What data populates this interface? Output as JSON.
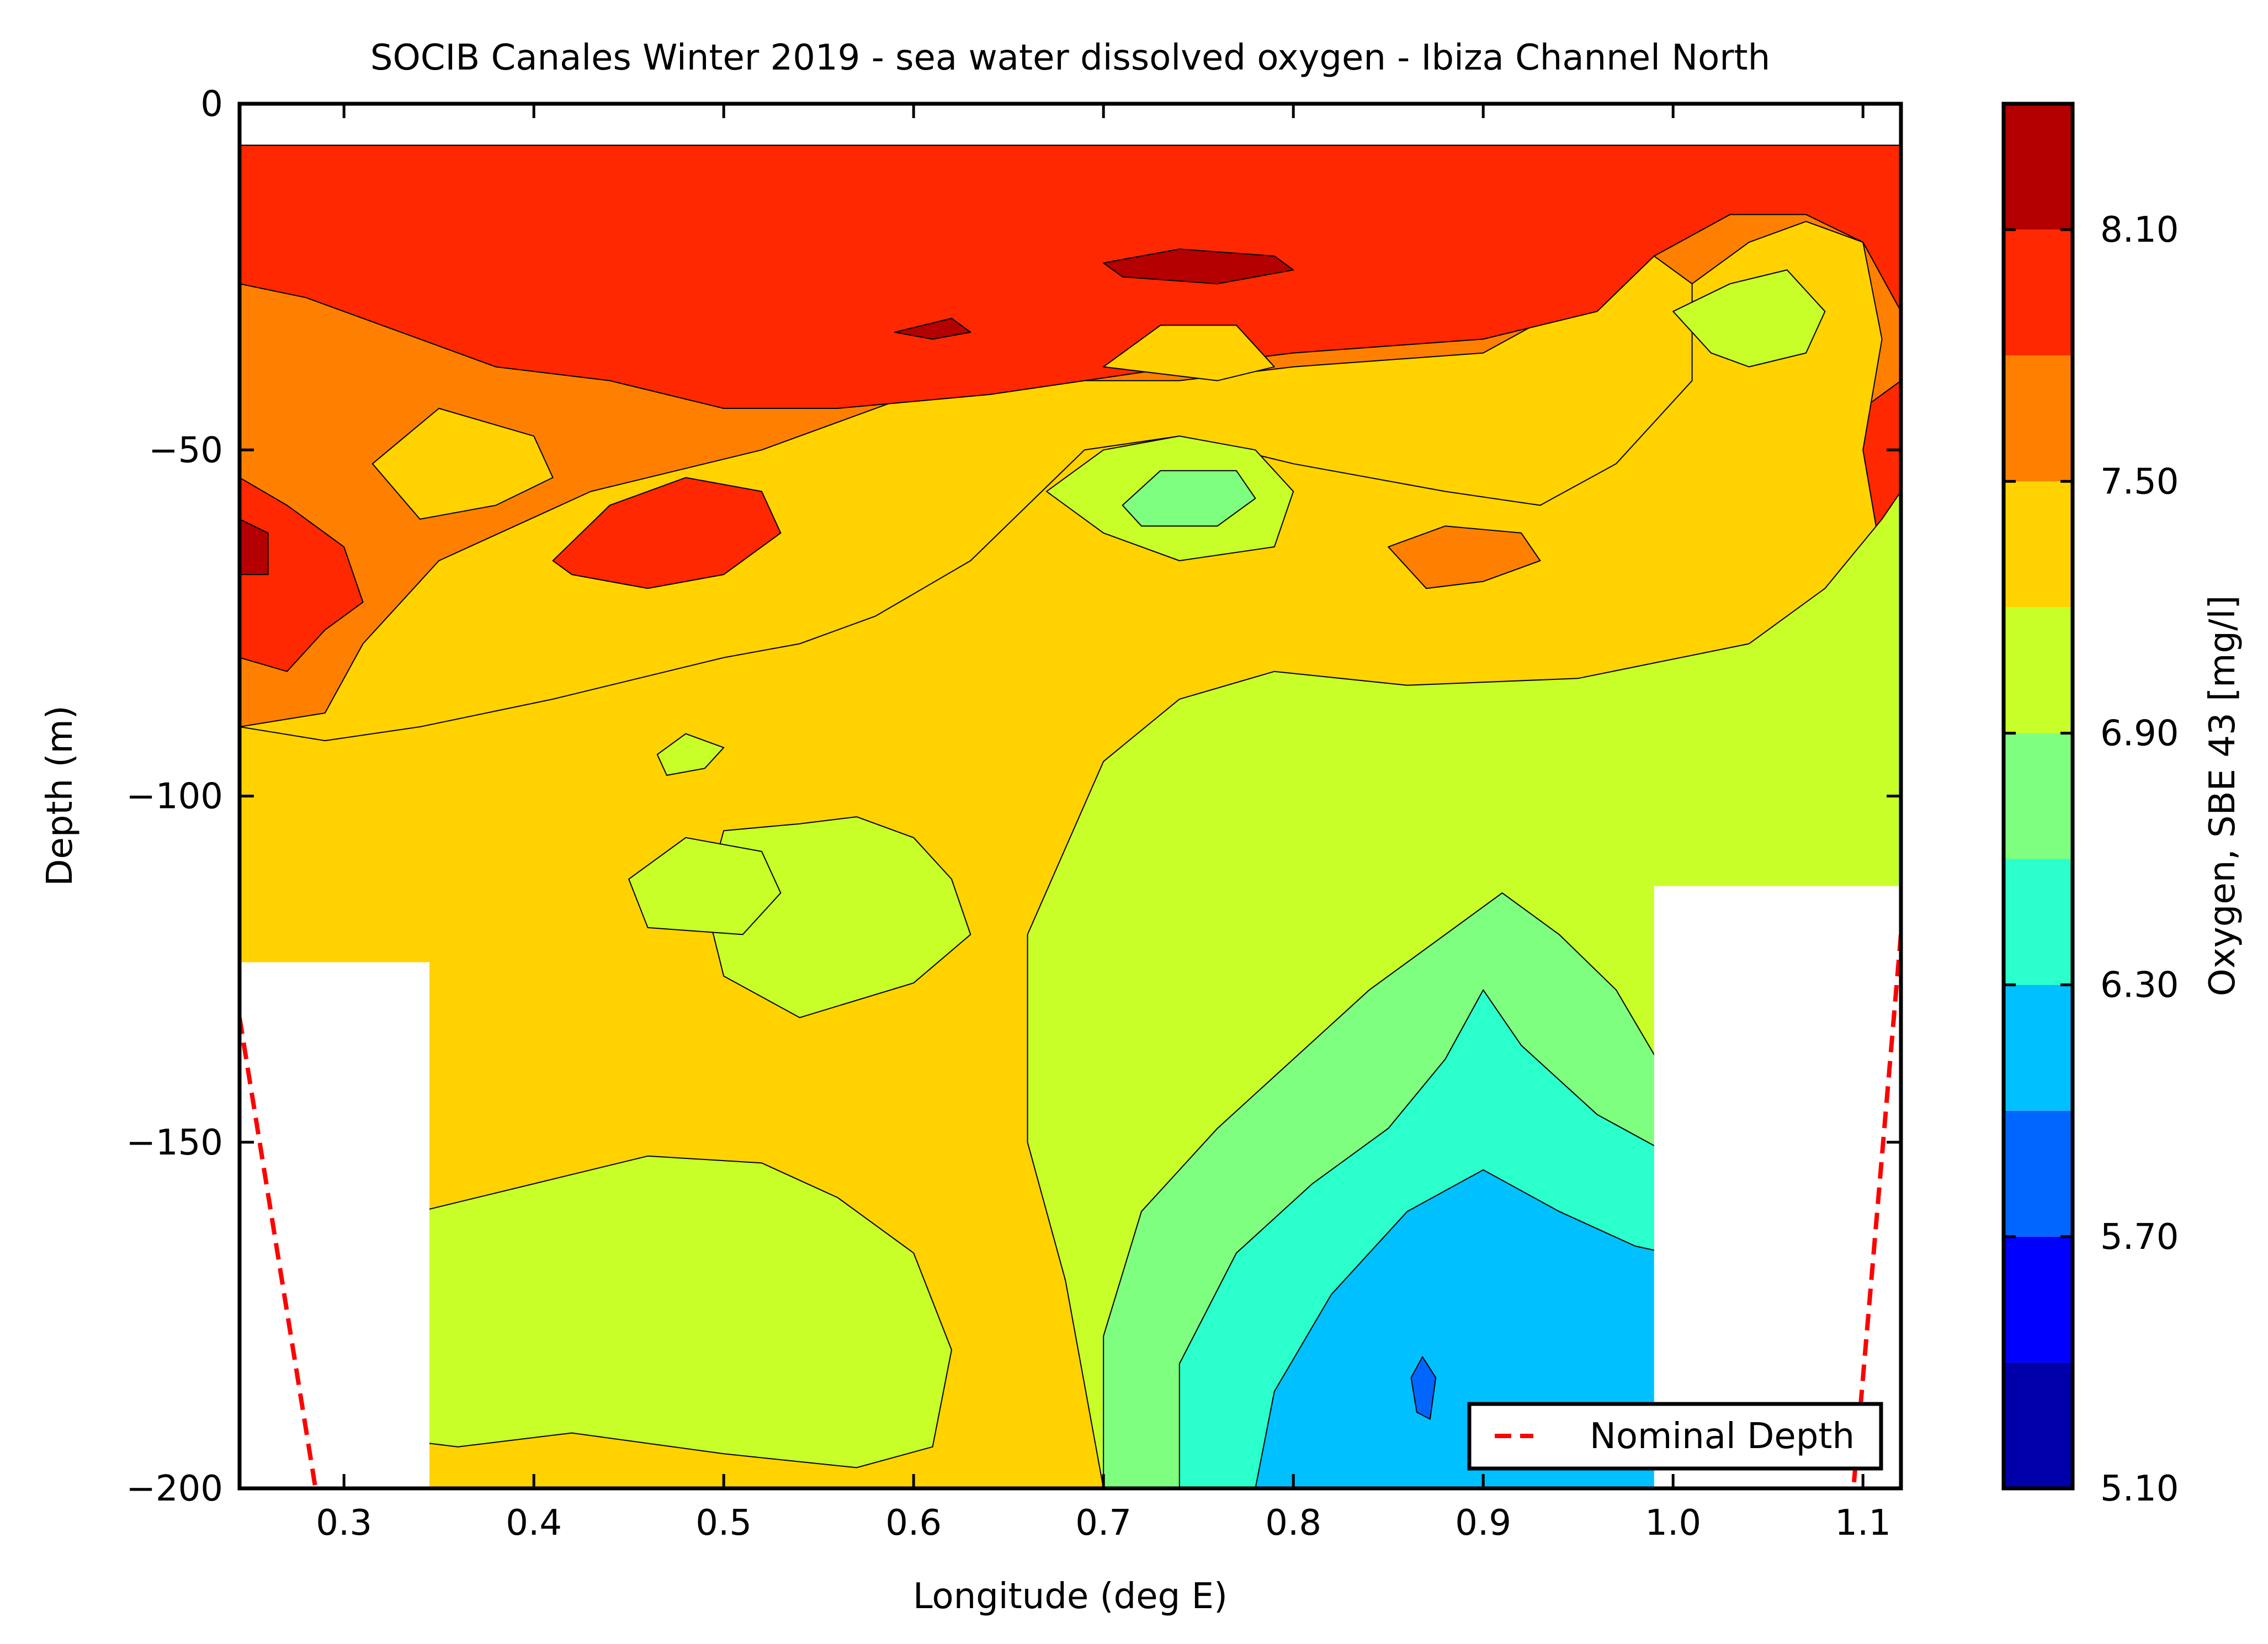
{
  "chart_data": {
    "type": "contour",
    "title": "SOCIB Canales Winter 2019 - sea water dissolved oxygen  -  Ibiza Channel North",
    "xlabel": "Longitude (deg E)",
    "ylabel": "Depth (m)",
    "xlim": [
      0.245,
      1.12
    ],
    "ylim": [
      -200,
      0
    ],
    "x_ticks": [
      0.3,
      0.4,
      0.5,
      0.6,
      0.7,
      0.8,
      0.9,
      1.0,
      1.1
    ],
    "x_tick_labels": [
      "0.3",
      "0.4",
      "0.5",
      "0.6",
      "0.7",
      "0.8",
      "0.9",
      "1.0",
      "1.1"
    ],
    "y_ticks": [
      0,
      -50,
      -100,
      -150,
      -200
    ],
    "y_tick_labels": [
      "0",
      "−50",
      "−100",
      "−150",
      "−200"
    ],
    "data_top_depth": -6,
    "colorbar": {
      "label": "Oxygen, SBE 43 [mg/l]",
      "levels": [
        5.1,
        5.4,
        5.7,
        6.0,
        6.3,
        6.6,
        6.9,
        7.2,
        7.5,
        7.8,
        8.1,
        8.4
      ],
      "tick_values": [
        5.1,
        5.7,
        6.3,
        6.9,
        7.5,
        8.1
      ],
      "tick_labels": [
        "5.10",
        "5.70",
        "6.30",
        "6.90",
        "7.50",
        "8.10"
      ],
      "colors": [
        "#0000aa",
        "#0000ff",
        "#0066ff",
        "#00c0ff",
        "#2bffcc",
        "#7fff7f",
        "#c8ff28",
        "#ffd200",
        "#ff8000",
        "#ff2800",
        "#b40000"
      ]
    },
    "band_colors": {
      "b5": "#7fff7f",
      "b6": "#c8ff28",
      "b7": "#ffd200",
      "b8": "#ff8000",
      "b9": "#ff2800",
      "b10": "#b40000",
      "b4": "#2bffcc",
      "b3": "#00c0ff",
      "b2": "#0066ff"
    },
    "regions": [
      {
        "level": 8,
        "points": [
          [
            0.245,
            -6
          ],
          [
            1.12,
            -6
          ],
          [
            1.12,
            -82
          ],
          [
            1.075,
            -78
          ],
          [
            1.06,
            -66
          ],
          [
            1.04,
            -50
          ],
          [
            1.03,
            -36
          ],
          [
            1.01,
            -26
          ],
          [
            0.98,
            -20
          ],
          [
            0.94,
            -30
          ],
          [
            0.9,
            -36
          ],
          [
            0.8,
            -38
          ],
          [
            0.74,
            -40
          ],
          [
            0.69,
            -40
          ],
          [
            0.6,
            -42
          ],
          [
            0.52,
            -50
          ],
          [
            0.43,
            -56
          ],
          [
            0.35,
            -66
          ],
          [
            0.31,
            -78
          ],
          [
            0.29,
            -88
          ],
          [
            0.245,
            -90
          ]
        ]
      },
      {
        "level": 9,
        "points": [
          [
            0.245,
            -6
          ],
          [
            1.12,
            -6
          ],
          [
            1.12,
            -30
          ],
          [
            1.1,
            -20
          ],
          [
            1.07,
            -16
          ],
          [
            1.03,
            -16
          ],
          [
            0.99,
            -22
          ],
          [
            0.96,
            -30
          ],
          [
            0.9,
            -34
          ],
          [
            0.8,
            -36
          ],
          [
            0.74,
            -38
          ],
          [
            0.69,
            -40
          ],
          [
            0.64,
            -42
          ],
          [
            0.56,
            -44
          ],
          [
            0.5,
            -44
          ],
          [
            0.44,
            -40
          ],
          [
            0.38,
            -38
          ],
          [
            0.32,
            -32
          ],
          [
            0.28,
            -28
          ],
          [
            0.245,
            -26
          ]
        ]
      },
      {
        "level": 9,
        "points": [
          [
            0.245,
            -54
          ],
          [
            0.27,
            -58
          ],
          [
            0.3,
            -64
          ],
          [
            0.31,
            -72
          ],
          [
            0.29,
            -76
          ],
          [
            0.27,
            -82
          ],
          [
            0.245,
            -80
          ]
        ]
      },
      {
        "level": 9,
        "points": [
          [
            0.41,
            -66
          ],
          [
            0.44,
            -58
          ],
          [
            0.48,
            -54
          ],
          [
            0.52,
            -56
          ],
          [
            0.53,
            -62
          ],
          [
            0.5,
            -68
          ],
          [
            0.46,
            -70
          ],
          [
            0.42,
            -68
          ]
        ]
      },
      {
        "level": 9,
        "points": [
          [
            1.12,
            -40
          ],
          [
            1.1,
            -44
          ],
          [
            1.085,
            -52
          ],
          [
            1.085,
            -60
          ],
          [
            1.1,
            -62
          ],
          [
            1.12,
            -62
          ]
        ]
      },
      {
        "level": 10,
        "points": [
          [
            0.7,
            -23
          ],
          [
            0.74,
            -21
          ],
          [
            0.79,
            -22
          ],
          [
            0.8,
            -24
          ],
          [
            0.76,
            -26
          ],
          [
            0.71,
            -25
          ]
        ]
      },
      {
        "level": 10,
        "points": [
          [
            0.245,
            -60
          ],
          [
            0.26,
            -62
          ],
          [
            0.26,
            -68
          ],
          [
            0.245,
            -68
          ]
        ]
      },
      {
        "level": 10,
        "points": [
          [
            0.59,
            -33
          ],
          [
            0.62,
            -31
          ],
          [
            0.63,
            -33
          ],
          [
            0.61,
            -34
          ]
        ]
      },
      {
        "level": 7,
        "points": [
          [
            0.245,
            -90
          ],
          [
            0.29,
            -92
          ],
          [
            0.34,
            -90
          ],
          [
            0.41,
            -86
          ],
          [
            0.5,
            -80
          ],
          [
            0.54,
            -78
          ],
          [
            0.58,
            -74
          ],
          [
            0.63,
            -66
          ],
          [
            0.66,
            -58
          ],
          [
            0.69,
            -50
          ],
          [
            0.74,
            -48
          ],
          [
            0.8,
            -52
          ],
          [
            0.88,
            -56
          ],
          [
            0.93,
            -58
          ],
          [
            0.97,
            -52
          ],
          [
            1.01,
            -40
          ],
          [
            1.01,
            -26
          ],
          [
            1.04,
            -20
          ],
          [
            1.07,
            -17
          ],
          [
            1.1,
            -20
          ],
          [
            1.11,
            -34
          ],
          [
            1.1,
            -50
          ],
          [
            1.11,
            -66
          ],
          [
            1.12,
            -78
          ],
          [
            1.12,
            -200
          ],
          [
            0.245,
            -200
          ]
        ]
      },
      {
        "level": 7,
        "points": [
          [
            0.315,
            -52
          ],
          [
            0.35,
            -44
          ],
          [
            0.4,
            -48
          ],
          [
            0.41,
            -54
          ],
          [
            0.38,
            -58
          ],
          [
            0.34,
            -60
          ]
        ]
      },
      {
        "level": 7,
        "points": [
          [
            0.7,
            -38
          ],
          [
            0.73,
            -32
          ],
          [
            0.77,
            -32
          ],
          [
            0.79,
            -38
          ],
          [
            0.76,
            -40
          ]
        ]
      },
      {
        "level": 8,
        "points": [
          [
            0.85,
            -64
          ],
          [
            0.88,
            -61
          ],
          [
            0.92,
            -62
          ],
          [
            0.93,
            -66
          ],
          [
            0.9,
            -69
          ],
          [
            0.87,
            -70
          ]
        ]
      },
      {
        "level": 6,
        "points": [
          [
            1.0,
            -30
          ],
          [
            1.03,
            -26
          ],
          [
            1.06,
            -24
          ],
          [
            1.08,
            -30
          ],
          [
            1.07,
            -36
          ],
          [
            1.04,
            -38
          ],
          [
            1.02,
            -36
          ]
        ]
      },
      {
        "level": 6,
        "points": [
          [
            0.67,
            -56
          ],
          [
            0.7,
            -50
          ],
          [
            0.74,
            -48
          ],
          [
            0.78,
            -50
          ],
          [
            0.8,
            -56
          ],
          [
            0.79,
            -64
          ],
          [
            0.74,
            -66
          ],
          [
            0.7,
            -62
          ]
        ]
      },
      {
        "level": 5,
        "points": [
          [
            0.71,
            -58
          ],
          [
            0.73,
            -53
          ],
          [
            0.77,
            -53
          ],
          [
            0.78,
            -57
          ],
          [
            0.76,
            -61
          ],
          [
            0.72,
            -61
          ]
        ]
      },
      {
        "level": 6,
        "points": [
          [
            0.5,
            -105
          ],
          [
            0.54,
            -104
          ],
          [
            0.57,
            -103
          ],
          [
            0.6,
            -106
          ],
          [
            0.62,
            -112
          ],
          [
            0.63,
            -120
          ],
          [
            0.6,
            -127
          ],
          [
            0.54,
            -132
          ],
          [
            0.5,
            -126
          ],
          [
            0.49,
            -115
          ]
        ]
      },
      {
        "level": 6,
        "points": [
          [
            0.45,
            -112
          ],
          [
            0.48,
            -106
          ],
          [
            0.52,
            -108
          ],
          [
            0.53,
            -114
          ],
          [
            0.51,
            -120
          ],
          [
            0.46,
            -119
          ]
        ]
      },
      {
        "level": 6,
        "points": [
          [
            0.465,
            -94
          ],
          [
            0.48,
            -91
          ],
          [
            0.5,
            -93
          ],
          [
            0.49,
            -96
          ],
          [
            0.47,
            -97
          ]
        ]
      },
      {
        "level": 6,
        "points": [
          [
            0.7,
            -200
          ],
          [
            0.68,
            -170
          ],
          [
            0.66,
            -150
          ],
          [
            0.66,
            -120
          ],
          [
            0.7,
            -95
          ],
          [
            0.74,
            -86
          ],
          [
            0.79,
            -82
          ],
          [
            0.86,
            -84
          ],
          [
            0.95,
            -83
          ],
          [
            1.04,
            -78
          ],
          [
            1.08,
            -70
          ],
          [
            1.11,
            -60
          ],
          [
            1.12,
            -56
          ],
          [
            1.12,
            -200
          ]
        ]
      },
      {
        "level": 6,
        "points": [
          [
            0.3,
            -165
          ],
          [
            0.34,
            -160
          ],
          [
            0.4,
            -156
          ],
          [
            0.46,
            -152
          ],
          [
            0.52,
            -153
          ],
          [
            0.56,
            -158
          ],
          [
            0.6,
            -166
          ],
          [
            0.62,
            -180
          ],
          [
            0.61,
            -194
          ],
          [
            0.57,
            -197
          ],
          [
            0.5,
            -195
          ],
          [
            0.42,
            -192
          ],
          [
            0.36,
            -194
          ],
          [
            0.3,
            -192
          ]
        ]
      },
      {
        "level": 5,
        "points": [
          [
            0.7,
            -200
          ],
          [
            0.7,
            -178
          ],
          [
            0.72,
            -160
          ],
          [
            0.76,
            -148
          ],
          [
            0.8,
            -138
          ],
          [
            0.84,
            -128
          ],
          [
            0.88,
            -120
          ],
          [
            0.91,
            -114
          ],
          [
            0.94,
            -120
          ],
          [
            0.97,
            -128
          ],
          [
            1.0,
            -142
          ],
          [
            1.02,
            -150
          ],
          [
            1.12,
            -150
          ],
          [
            1.12,
            -200
          ]
        ]
      },
      {
        "level": 4,
        "points": [
          [
            0.74,
            -200
          ],
          [
            0.74,
            -182
          ],
          [
            0.77,
            -166
          ],
          [
            0.81,
            -156
          ],
          [
            0.85,
            -148
          ],
          [
            0.88,
            -138
          ],
          [
            0.9,
            -128
          ],
          [
            0.92,
            -136
          ],
          [
            0.96,
            -146
          ],
          [
            1.0,
            -152
          ],
          [
            1.05,
            -156
          ],
          [
            1.12,
            -158
          ],
          [
            1.12,
            -200
          ]
        ]
      },
      {
        "level": 3,
        "points": [
          [
            0.78,
            -200
          ],
          [
            0.79,
            -186
          ],
          [
            0.82,
            -172
          ],
          [
            0.86,
            -160
          ],
          [
            0.9,
            -154
          ],
          [
            0.94,
            -160
          ],
          [
            0.98,
            -165
          ],
          [
            1.03,
            -168
          ],
          [
            1.12,
            -170
          ],
          [
            1.12,
            -200
          ]
        ]
      },
      {
        "level": 2,
        "points": [
          [
            0.862,
            -184
          ],
          [
            0.868,
            -181
          ],
          [
            0.875,
            -184
          ],
          [
            0.872,
            -190
          ],
          [
            0.865,
            -189
          ]
        ]
      }
    ],
    "masks": [
      {
        "x": [
          0.245,
          0.345
        ],
        "y_top": -124
      },
      {
        "x": [
          0.99,
          1.12
        ],
        "y_top": -113
      }
    ],
    "series": [
      {
        "name": "Nominal Depth",
        "style": "dashed",
        "color": "#ff0000",
        "segments": [
          {
            "x": [
              0.245,
              0.285
            ],
            "y": [
              -132,
              -200
            ]
          },
          {
            "x": [
              1.12,
              1.095
            ],
            "y": [
              -120,
              -200
            ]
          }
        ]
      }
    ],
    "legend": {
      "placement": "lower-right"
    },
    "grid": false
  }
}
